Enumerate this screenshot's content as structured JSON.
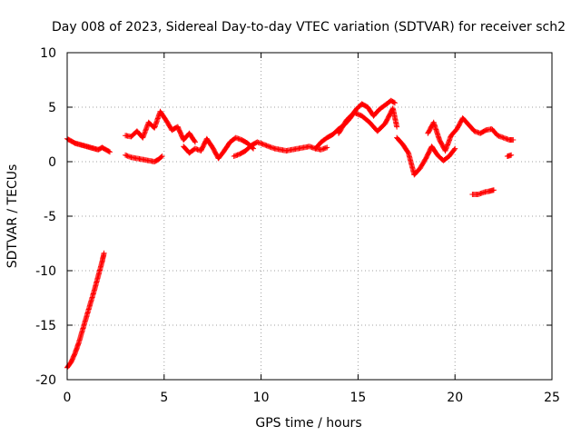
{
  "chart_data": {
    "type": "scatter",
    "title": "Day 008 of 2023, Sidereal Day-to-day VTEC variation (SDTVAR) for receiver sch2",
    "xlabel": "GPS time / hours",
    "ylabel": "SDTVAR / TECUs",
    "xlim": [
      0,
      25
    ],
    "ylim": [
      -20,
      10
    ],
    "xticks": [
      0,
      5,
      10,
      15,
      20,
      25
    ],
    "yticks": [
      -20,
      -15,
      -10,
      -5,
      0,
      5,
      10
    ],
    "xtick_labels": [
      "0",
      "5",
      "10",
      "15",
      "20",
      "25"
    ],
    "ytick_labels": [
      "-20",
      "-15",
      "-10",
      "-5",
      "0",
      "5",
      "10"
    ],
    "grid": true,
    "marker": "+",
    "color": "#ff0000",
    "series": [
      {
        "name": "sch2",
        "segments": [
          {
            "x": [
              0.0,
              0.2,
              0.4,
              0.6,
              0.8,
              1.0,
              1.2,
              1.4,
              1.6,
              1.8,
              1.9
            ],
            "y": [
              -18.9,
              -18.4,
              -17.6,
              -16.6,
              -15.4,
              -14.2,
              -13.0,
              -11.8,
              -10.5,
              -9.2,
              -8.4
            ]
          },
          {
            "x": [
              0.0,
              0.2,
              0.4,
              0.6,
              0.8,
              1.0,
              1.2,
              1.4,
              1.6,
              1.8,
              2.0,
              2.2
            ],
            "y": [
              2.1,
              1.9,
              1.7,
              1.6,
              1.5,
              1.4,
              1.3,
              1.2,
              1.1,
              1.3,
              1.1,
              0.9
            ]
          },
          {
            "x": [
              3.0,
              3.3,
              3.6,
              3.9,
              4.2,
              4.5,
              4.7,
              4.9
            ],
            "y": [
              0.6,
              0.4,
              0.3,
              0.2,
              0.1,
              0.0,
              0.2,
              0.5
            ]
          },
          {
            "x": [
              3.0,
              3.3,
              3.6,
              3.9,
              4.2,
              4.5,
              4.8,
              5.1,
              5.4,
              5.7,
              6.0,
              6.3,
              6.6
            ],
            "y": [
              2.4,
              2.3,
              2.8,
              2.2,
              3.6,
              3.1,
              4.6,
              3.8,
              2.9,
              3.2,
              2.0,
              2.6,
              1.8
            ]
          },
          {
            "x": [
              6.0,
              6.3,
              6.6,
              6.9,
              7.2,
              7.5,
              7.8,
              8.1,
              8.4,
              8.7,
              9.0,
              9.3,
              9.6
            ],
            "y": [
              1.4,
              0.8,
              1.2,
              1.0,
              2.1,
              1.3,
              0.3,
              1.0,
              1.8,
              2.2,
              2.0,
              1.7,
              1.2
            ]
          },
          {
            "x": [
              8.6,
              8.9,
              9.2,
              9.5,
              9.8,
              10.1,
              10.4,
              10.7,
              11.0,
              11.3,
              11.6,
              11.9,
              12.2,
              12.5,
              12.8,
              13.1,
              13.4
            ],
            "y": [
              0.5,
              0.7,
              1.0,
              1.5,
              1.8,
              1.6,
              1.4,
              1.2,
              1.1,
              1.0,
              1.1,
              1.2,
              1.3,
              1.4,
              1.2,
              1.1,
              1.3
            ]
          },
          {
            "x": [
              12.8,
              13.1,
              13.4,
              13.7,
              14.0,
              14.3,
              14.6,
              14.9,
              15.2,
              15.5,
              15.8,
              16.1,
              16.4,
              16.7,
              16.9
            ],
            "y": [
              1.2,
              1.8,
              2.2,
              2.5,
              3.0,
              3.4,
              4.0,
              4.8,
              5.3,
              5.0,
              4.2,
              4.8,
              5.2,
              5.6,
              5.4
            ]
          },
          {
            "x": [
              14.0,
              14.4,
              14.8,
              15.2,
              15.6,
              16.0,
              16.4,
              16.8,
              17.0
            ],
            "y": [
              2.6,
              3.8,
              4.5,
              4.2,
              3.6,
              2.8,
              3.5,
              4.9,
              3.2
            ]
          },
          {
            "x": [
              17.0,
              17.3,
              17.6,
              17.9,
              18.2,
              18.5,
              18.8,
              19.1,
              19.4,
              19.7,
              20.0
            ],
            "y": [
              2.2,
              1.6,
              0.8,
              -1.2,
              -0.6,
              0.3,
              1.4,
              0.6,
              0.1,
              0.5,
              1.2
            ]
          },
          {
            "x": [
              18.6,
              18.9,
              19.2,
              19.5,
              19.8,
              20.1,
              20.4,
              20.7,
              21.0,
              21.3,
              21.6,
              21.9,
              22.2,
              22.5,
              22.8,
              23.0
            ],
            "y": [
              2.6,
              3.6,
              2.0,
              1.0,
              2.4,
              3.0,
              4.0,
              3.4,
              2.8,
              2.6,
              2.9,
              3.0,
              2.4,
              2.2,
              2.0,
              2.0
            ]
          },
          {
            "x": [
              22.7,
              22.9
            ],
            "y": [
              0.5,
              0.6
            ]
          },
          {
            "x": [
              20.9,
              21.2,
              21.5,
              21.8,
              22.0
            ],
            "y": [
              -3.0,
              -3.0,
              -2.8,
              -2.7,
              -2.6
            ]
          }
        ]
      }
    ]
  }
}
